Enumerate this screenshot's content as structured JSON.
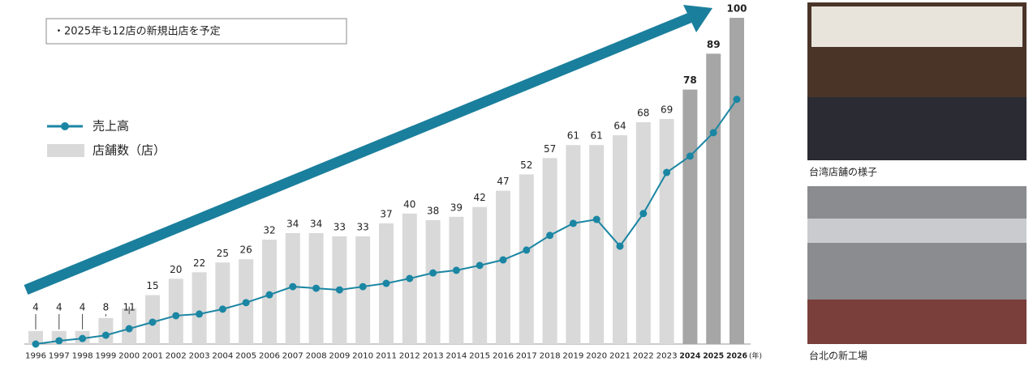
{
  "chart_data": {
    "type": "bar",
    "annotation": "・2025年も12店の新規出店を予定",
    "x_unit": "(年)",
    "categories": [
      "1996",
      "1997",
      "1998",
      "1999",
      "2000",
      "2001",
      "2002",
      "2003",
      "2004",
      "2005",
      "2006",
      "2007",
      "2008",
      "2009",
      "2010",
      "2011",
      "2012",
      "2013",
      "2014",
      "2015",
      "2016",
      "2017",
      "2018",
      "2019",
      "2020",
      "2021",
      "2022",
      "2023",
      "2024",
      "2025",
      "2026"
    ],
    "ylim": [
      0,
      100
    ],
    "legend": "left",
    "series": [
      {
        "name": "店舗数（店）",
        "type": "bar",
        "color": "#d9d9d9",
        "colors": [
          "#d9d9d9",
          "#d9d9d9",
          "#d9d9d9",
          "#d9d9d9",
          "#d9d9d9",
          "#d9d9d9",
          "#d9d9d9",
          "#d9d9d9",
          "#d9d9d9",
          "#d9d9d9",
          "#d9d9d9",
          "#d9d9d9",
          "#d9d9d9",
          "#d9d9d9",
          "#d9d9d9",
          "#d9d9d9",
          "#d9d9d9",
          "#d9d9d9",
          "#d9d9d9",
          "#d9d9d9",
          "#d9d9d9",
          "#d9d9d9",
          "#d9d9d9",
          "#d9d9d9",
          "#d9d9d9",
          "#d9d9d9",
          "#d9d9d9",
          "#d9d9d9",
          "#a6a6a6",
          "#a6a6a6",
          "#a6a6a6"
        ],
        "values": [
          4,
          4,
          4,
          8,
          11,
          15,
          20,
          22,
          25,
          26,
          32,
          34,
          34,
          33,
          33,
          37,
          40,
          38,
          39,
          42,
          47,
          52,
          57,
          61,
          61,
          64,
          68,
          69,
          78,
          89,
          100
        ]
      },
      {
        "name": "売上高",
        "type": "line",
        "color": "#1a86a3",
        "values": [
          0,
          1,
          1.7,
          2.7,
          4.7,
          6.7,
          8.7,
          9.2,
          10.7,
          12.7,
          15.1,
          17.6,
          17.1,
          16.6,
          17.6,
          18.6,
          20.1,
          21.8,
          22.6,
          24.1,
          25.8,
          28.8,
          33.3,
          37,
          38.2,
          30,
          40,
          52.6,
          57.6,
          64.8,
          75
        ]
      }
    ]
  },
  "photos": [
    {
      "caption": "台湾店舗の様子"
    },
    {
      "caption": "台北の新工場"
    }
  ]
}
